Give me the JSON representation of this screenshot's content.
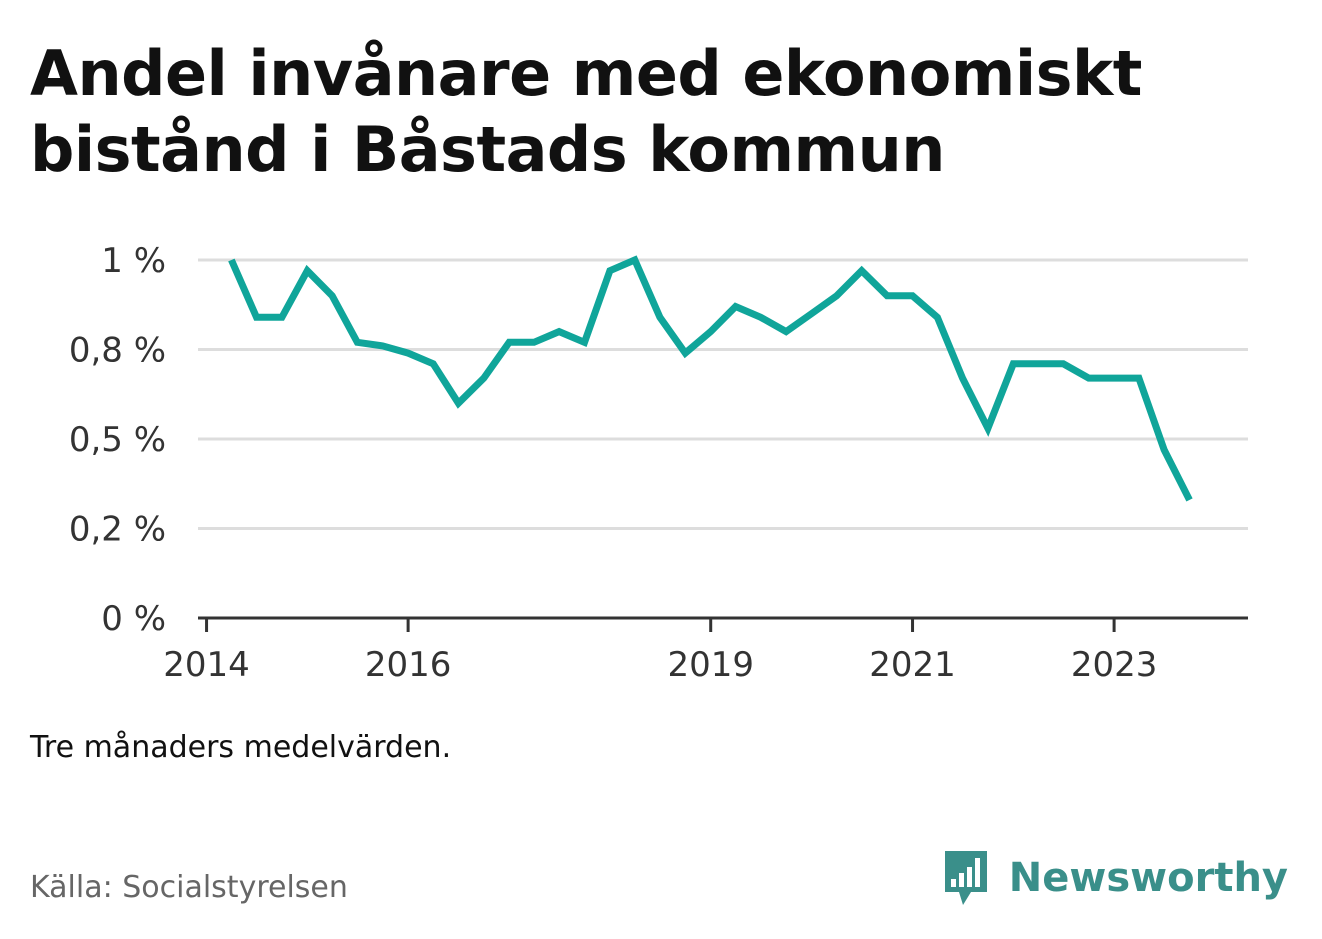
{
  "title": "Andel invånare med ekonomiskt bistånd i Båstads kommun",
  "note": "Tre månaders medelvärden.",
  "source": "Källa: Socialstyrelsen",
  "brand": {
    "name": "Newsworthy",
    "icon": "newsworthy-logo-icon",
    "color": "#3a8f8a"
  },
  "colors": {
    "line": "#10a59a",
    "grid": "#dddddd",
    "axis": "#333333"
  },
  "chart_data": {
    "type": "line",
    "title": "Andel invånare med ekonomiskt bistånd i Båstads kommun",
    "xlabel": "",
    "ylabel": "",
    "x_ticks": [
      "2014",
      "2016",
      "2019",
      "2021",
      "2023"
    ],
    "y_ticks": [
      "0 %",
      "0,2 %",
      "0,5 %",
      "0,8 %",
      "1 %"
    ],
    "y_tick_values": [
      0,
      0.25,
      0.5,
      0.75,
      1.0
    ],
    "ylim": [
      0,
      1.0
    ],
    "xlim": [
      "2013-12-01",
      "2024-04-30"
    ],
    "grid": true,
    "legend": "none",
    "x": [
      "2014-04",
      "2014-07",
      "2014-10",
      "2015-01",
      "2015-04",
      "2015-07",
      "2015-10",
      "2016-01",
      "2016-04",
      "2016-07",
      "2016-10",
      "2017-01",
      "2017-04",
      "2017-07",
      "2017-10",
      "2018-01",
      "2018-04",
      "2018-07",
      "2018-10",
      "2019-01",
      "2019-04",
      "2019-07",
      "2019-10",
      "2020-01",
      "2020-04",
      "2020-07",
      "2020-10",
      "2021-01",
      "2021-04",
      "2021-07",
      "2021-10",
      "2022-01",
      "2022-04",
      "2022-07",
      "2022-10",
      "2023-01",
      "2023-04",
      "2023-07",
      "2023-10"
    ],
    "values": [
      1.0,
      0.84,
      0.84,
      0.97,
      0.9,
      0.77,
      0.76,
      0.74,
      0.71,
      0.6,
      0.67,
      0.77,
      0.77,
      0.8,
      0.77,
      0.97,
      1.0,
      0.84,
      0.74,
      0.8,
      0.87,
      0.84,
      0.8,
      0.85,
      0.9,
      0.97,
      0.9,
      0.9,
      0.84,
      0.67,
      0.53,
      0.71,
      0.71,
      0.71,
      0.67,
      0.67,
      0.67,
      0.47,
      0.33
    ]
  }
}
